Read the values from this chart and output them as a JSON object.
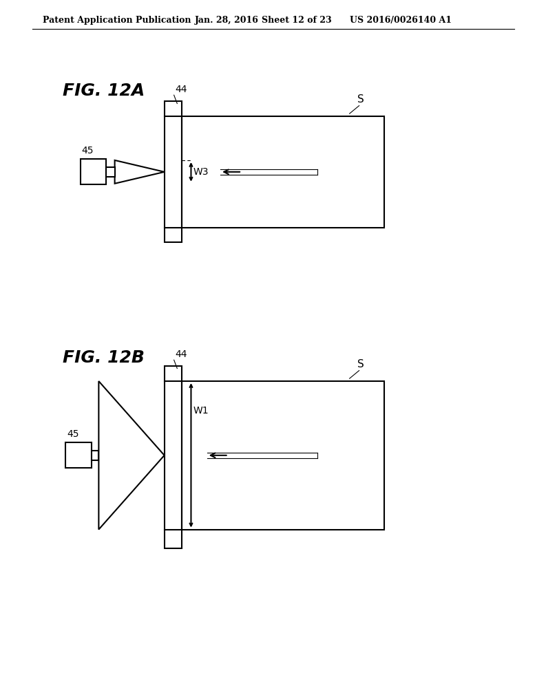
{
  "bg_color": "#ffffff",
  "line_color": "#000000",
  "header_text": "Patent Application Publication",
  "header_date": "Jan. 28, 2016",
  "header_sheet": "Sheet 12 of 23",
  "header_patent": "US 2016/0026140 A1",
  "fig_label_A": "FIG. 12A",
  "fig_label_B": "FIG. 12B",
  "label_44": "44",
  "label_45": "45",
  "label_S": "S",
  "label_W3": "W3",
  "label_W1": "W1",
  "line_width": 1.5,
  "thin_line": 0.8
}
